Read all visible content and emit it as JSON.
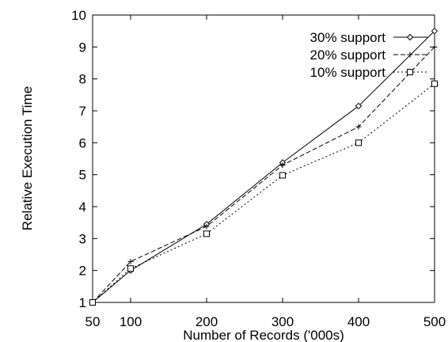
{
  "chart_data": {
    "type": "line",
    "title": "",
    "xlabel": "Number of Records ('000s)",
    "ylabel": "Relative Execution Time",
    "x": [
      50,
      100,
      200,
      300,
      400,
      500
    ],
    "xticks": [
      "50",
      "100",
      "200",
      "300",
      "400",
      "500"
    ],
    "xlim": [
      50,
      500
    ],
    "ylim": [
      1,
      10
    ],
    "yticks": [
      "1",
      "2",
      "3",
      "4",
      "5",
      "6",
      "7",
      "8",
      "9",
      "10"
    ],
    "grid": false,
    "legend_position": "top-right",
    "series": [
      {
        "name": "30% support",
        "marker": "diamond",
        "dash": "solid",
        "values": [
          1,
          2.0,
          3.45,
          5.38,
          7.15,
          9.5
        ]
      },
      {
        "name": "20% support",
        "marker": "plus",
        "dash": "dashed",
        "values": [
          1,
          2.28,
          3.38,
          5.3,
          6.5,
          9.0
        ]
      },
      {
        "name": "10% support",
        "marker": "square",
        "dash": "dotted",
        "values": [
          1,
          2.06,
          3.15,
          4.98,
          6.0,
          7.85
        ]
      }
    ]
  }
}
